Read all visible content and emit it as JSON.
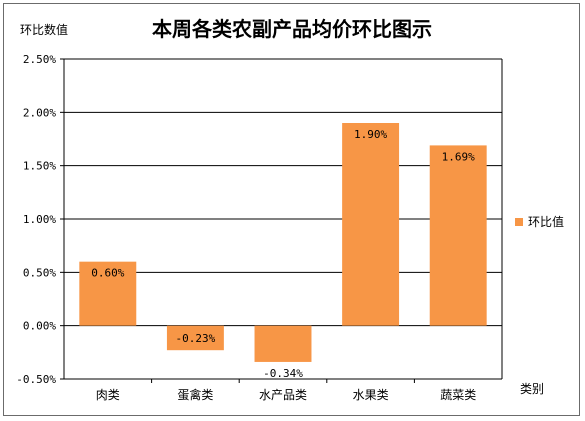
{
  "chart_data": {
    "type": "bar",
    "title": "本周各类农副产品均价环比图示",
    "ylabel": "环比数值",
    "xlabel": "类别",
    "categories": [
      "肉类",
      "蛋禽类",
      "水产品类",
      "水果类",
      "蔬菜类"
    ],
    "series": [
      {
        "name": "环比值",
        "values": [
          0.6,
          -0.23,
          -0.34,
          1.9,
          1.69
        ],
        "labels": [
          "0.60%",
          "-0.23%",
          "-0.34%",
          "1.90%",
          "1.69%"
        ],
        "color": "#F79646"
      }
    ],
    "ylim": [
      -0.5,
      2.5
    ],
    "yticks": [
      2.5,
      2.0,
      1.5,
      1.0,
      0.5,
      0.0,
      -0.5
    ],
    "ytick_labels": [
      "2.50%",
      "2.00%",
      "1.50%",
      "1.00%",
      "0.50%",
      "0.00%",
      "-0.50%"
    ],
    "grid": true,
    "legend": "right"
  }
}
